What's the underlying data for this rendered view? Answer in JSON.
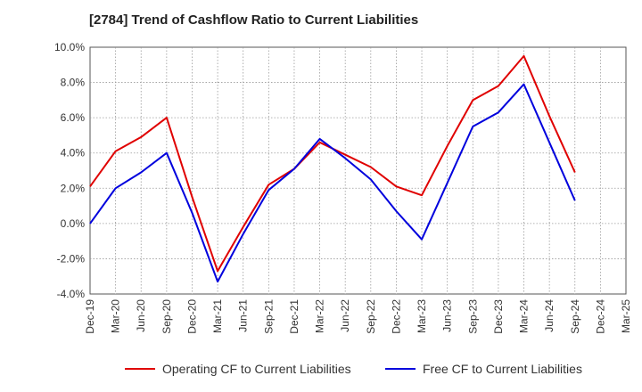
{
  "chart_data": {
    "type": "line",
    "title": "[2784]  Trend of Cashflow Ratio to Current Liabilities",
    "categories": [
      "Dec-19",
      "Mar-20",
      "Jun-20",
      "Sep-20",
      "Dec-20",
      "Mar-21",
      "Jun-21",
      "Sep-21",
      "Dec-21",
      "Mar-22",
      "Jun-22",
      "Sep-22",
      "Dec-22",
      "Mar-23",
      "Jun-23",
      "Sep-23",
      "Dec-23",
      "Mar-24",
      "Jun-24",
      "Sep-24",
      "Dec-24",
      "Mar-25"
    ],
    "y_ticks": [
      "10.0%",
      "8.0%",
      "6.0%",
      "4.0%",
      "2.0%",
      "0.0%",
      "-2.0%",
      "-4.0%"
    ],
    "ylim": [
      -4,
      10
    ],
    "xlabel": "",
    "ylabel": "",
    "grid": true,
    "legend_position": "bottom-center",
    "series": [
      {
        "name": "Operating CF to Current Liabilities",
        "color": "#e00000",
        "values": [
          2.1,
          4.1,
          4.9,
          6.0,
          1.5,
          -2.7,
          -0.2,
          2.2,
          3.1,
          4.6,
          3.9,
          3.2,
          2.1,
          1.6,
          4.4,
          7.0,
          7.8,
          9.5,
          6.1,
          2.9,
          null,
          null
        ]
      },
      {
        "name": "Free CF to Current Liabilities",
        "color": "#0000dd",
        "values": [
          0.0,
          2.0,
          2.9,
          4.0,
          0.6,
          -3.3,
          -0.6,
          1.9,
          3.1,
          4.8,
          3.7,
          2.5,
          0.7,
          -0.9,
          2.3,
          5.5,
          6.3,
          7.9,
          4.6,
          1.3,
          null,
          null
        ]
      }
    ]
  }
}
